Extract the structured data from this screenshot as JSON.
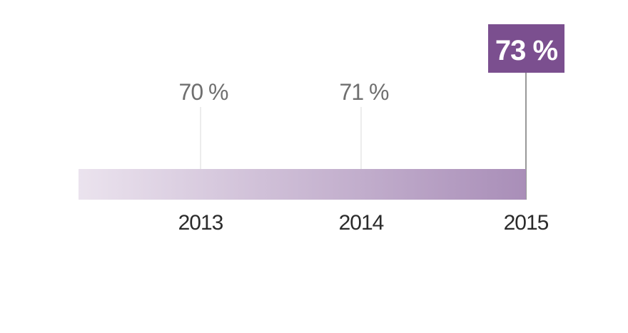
{
  "chart_data": {
    "type": "timeline",
    "categories": [
      "2013",
      "2014",
      "2015"
    ],
    "values": [
      70,
      71,
      73
    ],
    "labels": [
      "70 %",
      "71 %",
      "73 %"
    ],
    "highlight_index": 2,
    "colors": {
      "accent": "#7b4f8f",
      "bar_start": "#ebe3ee",
      "bar_end": "#a98eb8",
      "leader": "#d8d8d8",
      "leader_highlight": "#555555",
      "label": "#6f6f6f",
      "year": "#2b2b2b"
    }
  }
}
